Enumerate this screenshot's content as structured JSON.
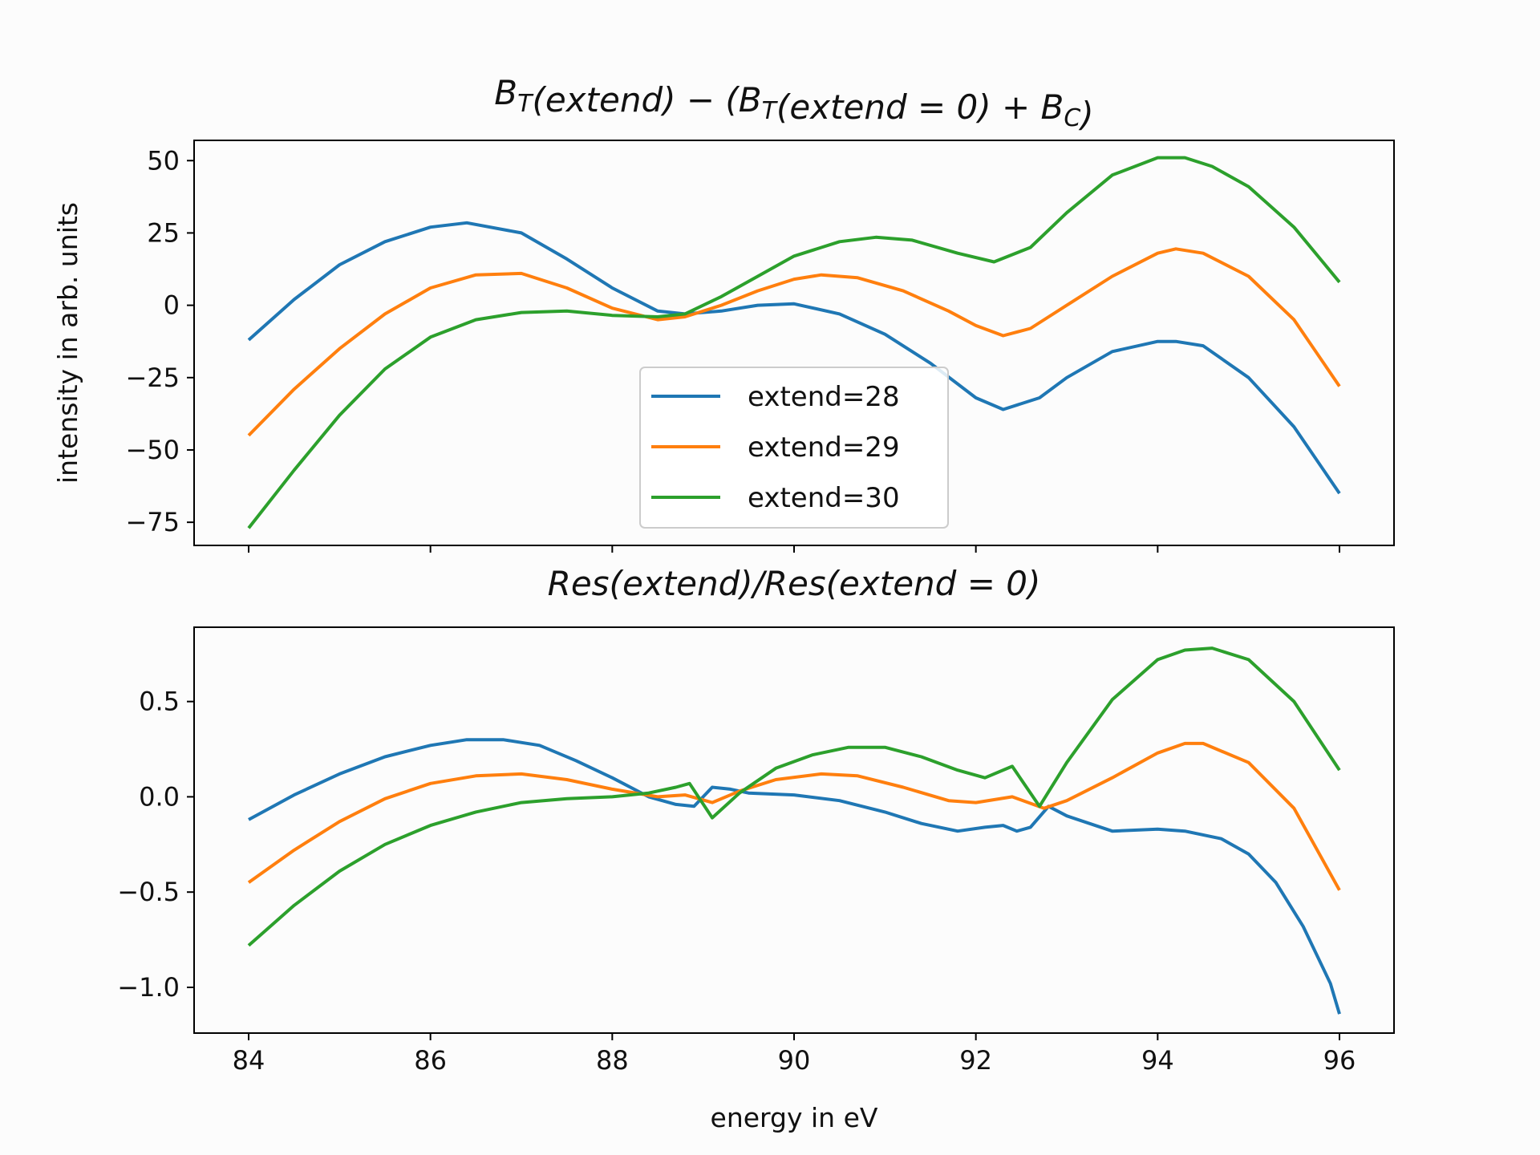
{
  "chart_data": [
    {
      "type": "line",
      "title": "B_T(extend) − (B_T(extend = 0) + B_C)",
      "title_parts": [
        {
          "t": "B",
          "italic": true
        },
        {
          "t": "T",
          "sub": true,
          "italic": true
        },
        {
          "t": "(extend) − (",
          "italic": true
        },
        {
          "t": "B",
          "italic": true
        },
        {
          "t": "T",
          "sub": true,
          "italic": true
        },
        {
          "t": "(extend = 0) + ",
          "italic": true
        },
        {
          "t": "B",
          "italic": true
        },
        {
          "t": "C",
          "sub": true,
          "italic": true
        },
        {
          "t": ")",
          "italic": true
        }
      ],
      "xlabel": "",
      "ylabel": "intensity in arb. units",
      "xlim": [
        83.4,
        96.6
      ],
      "ylim": [
        -83,
        57
      ],
      "yticks": [
        50,
        25,
        0,
        -25,
        -50,
        -75
      ],
      "ytick_labels": [
        "50",
        "25",
        "0",
        "−25",
        "−50",
        "−75"
      ],
      "xticks": [
        84,
        86,
        88,
        90,
        92,
        94,
        96
      ],
      "show_xtick_labels": false,
      "legend": {
        "placement": "center",
        "entries": [
          "extend=28",
          "extend=29",
          "extend=30"
        ]
      },
      "series": [
        {
          "name": "extend=28",
          "color": "#1f77b4",
          "x": [
            84,
            84.5,
            85,
            85.5,
            86,
            86.4,
            87,
            87.5,
            88,
            88.5,
            88.8,
            89.2,
            89.6,
            90,
            90.5,
            91,
            91.5,
            92,
            92.3,
            92.7,
            93,
            93.5,
            94,
            94.2,
            94.5,
            95,
            95.5,
            96
          ],
          "y": [
            -12,
            2,
            14,
            22,
            27,
            28.5,
            25,
            16,
            6,
            -2,
            -3,
            -2,
            0,
            0.5,
            -3,
            -10,
            -20,
            -32,
            -36,
            -32,
            -25,
            -16,
            -12.5,
            -12.5,
            -14,
            -25,
            -42,
            -65
          ]
        },
        {
          "name": "extend=29",
          "color": "#ff7f0e",
          "x": [
            84,
            84.5,
            85,
            85.5,
            86,
            86.5,
            87,
            87.5,
            88,
            88.5,
            88.8,
            89.2,
            89.6,
            90,
            90.3,
            90.7,
            91.2,
            91.7,
            92,
            92.3,
            92.6,
            93,
            93.5,
            94,
            94.2,
            94.5,
            95,
            95.5,
            96
          ],
          "y": [
            -45,
            -29,
            -15,
            -3,
            6,
            10.5,
            11,
            6,
            -1,
            -5,
            -4,
            0,
            5,
            9,
            10.5,
            9.5,
            5,
            -2,
            -7,
            -10.5,
            -8,
            0,
            10,
            18,
            19.5,
            18,
            10,
            -5,
            -28
          ]
        },
        {
          "name": "extend=30",
          "color": "#2ca02c",
          "x": [
            84,
            84.5,
            85,
            85.5,
            86,
            86.5,
            87,
            87.5,
            88,
            88.5,
            88.8,
            89.2,
            89.6,
            90,
            90.5,
            90.9,
            91.3,
            91.8,
            92.2,
            92.6,
            93,
            93.5,
            94,
            94.3,
            94.6,
            95,
            95.5,
            96
          ],
          "y": [
            -77,
            -57,
            -38,
            -22,
            -11,
            -5,
            -2.5,
            -2,
            -3.5,
            -4,
            -3,
            3,
            10,
            17,
            22,
            23.5,
            22.5,
            18,
            15,
            20,
            32,
            45,
            51,
            51,
            48,
            41,
            27,
            8
          ]
        }
      ]
    },
    {
      "type": "line",
      "title": "Res(extend)/Res(extend = 0)",
      "title_parts": [
        {
          "t": "Res(extend)/Res(extend = 0)",
          "italic": true
        }
      ],
      "xlabel": "energy in eV",
      "ylabel": "",
      "xlim": [
        83.4,
        96.6
      ],
      "ylim": [
        -1.24,
        0.89
      ],
      "yticks": [
        0.5,
        0.0,
        -0.5,
        -1.0
      ],
      "ytick_labels": [
        "0.5",
        "0.0",
        "−0.5",
        "−1.0"
      ],
      "xticks": [
        84,
        86,
        88,
        90,
        92,
        94,
        96
      ],
      "xtick_labels": [
        "84",
        "86",
        "88",
        "90",
        "92",
        "94",
        "96"
      ],
      "series": [
        {
          "name": "",
          "color": "#1f77b4",
          "x": [
            84,
            84.5,
            85,
            85.5,
            86,
            86.4,
            86.8,
            87.2,
            87.6,
            88,
            88.4,
            88.7,
            88.9,
            89.1,
            89.3,
            89.5,
            90,
            90.5,
            91,
            91.4,
            91.8,
            92.1,
            92.3,
            92.45,
            92.6,
            92.8,
            93,
            93.5,
            94,
            94.3,
            94.7,
            95,
            95.3,
            95.6,
            95.9,
            96
          ],
          "y": [
            -0.12,
            0.01,
            0.12,
            0.21,
            0.27,
            0.3,
            0.3,
            0.27,
            0.19,
            0.1,
            0.0,
            -0.04,
            -0.05,
            0.05,
            0.04,
            0.02,
            0.01,
            -0.02,
            -0.08,
            -0.14,
            -0.18,
            -0.16,
            -0.15,
            -0.18,
            -0.16,
            -0.05,
            -0.1,
            -0.18,
            -0.17,
            -0.18,
            -0.22,
            -0.3,
            -0.45,
            -0.68,
            -0.98,
            -1.14
          ]
        },
        {
          "name": "",
          "color": "#ff7f0e",
          "x": [
            84,
            84.5,
            85,
            85.5,
            86,
            86.5,
            87,
            87.5,
            88,
            88.5,
            88.8,
            89.1,
            89.4,
            89.8,
            90.3,
            90.7,
            91.2,
            91.7,
            92,
            92.4,
            92.75,
            93,
            93.5,
            94,
            94.3,
            94.5,
            95,
            95.5,
            96
          ],
          "y": [
            -0.45,
            -0.28,
            -0.13,
            -0.01,
            0.07,
            0.11,
            0.12,
            0.09,
            0.04,
            0.0,
            0.01,
            -0.03,
            0.03,
            0.09,
            0.12,
            0.11,
            0.05,
            -0.02,
            -0.03,
            0.0,
            -0.06,
            -0.02,
            0.1,
            0.23,
            0.28,
            0.28,
            0.18,
            -0.06,
            -0.49
          ]
        },
        {
          "name": "",
          "color": "#2ca02c",
          "x": [
            84,
            84.5,
            85,
            85.5,
            86,
            86.5,
            87,
            87.5,
            88,
            88.4,
            88.7,
            88.85,
            89.1,
            89.4,
            89.8,
            90.2,
            90.6,
            91,
            91.4,
            91.8,
            92.1,
            92.4,
            92.7,
            93,
            93.5,
            94,
            94.3,
            94.6,
            95,
            95.5,
            96
          ],
          "y": [
            -0.78,
            -0.57,
            -0.39,
            -0.25,
            -0.15,
            -0.08,
            -0.03,
            -0.01,
            0.0,
            0.02,
            0.05,
            0.07,
            -0.11,
            0.02,
            0.15,
            0.22,
            0.26,
            0.26,
            0.21,
            0.14,
            0.1,
            0.16,
            -0.05,
            0.18,
            0.51,
            0.72,
            0.77,
            0.78,
            0.72,
            0.5,
            0.14
          ]
        }
      ]
    }
  ]
}
